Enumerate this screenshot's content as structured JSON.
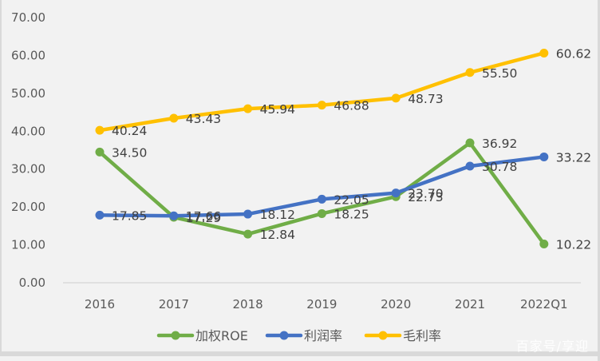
{
  "chart_data": {
    "type": "line",
    "title": "",
    "xlabel": "",
    "ylabel": "",
    "categories": [
      "2016",
      "2017",
      "2018",
      "2019",
      "2020",
      "2021",
      "2022Q1"
    ],
    "ylim": [
      0,
      70
    ],
    "yticks": [
      "0.00",
      "10.00",
      "20.00",
      "30.00",
      "40.00",
      "50.00",
      "60.00",
      "70.00"
    ],
    "grid": false,
    "legend_position": "bottom",
    "series": [
      {
        "name": "加权ROE",
        "color": "#70ad47",
        "values": [
          34.5,
          17.29,
          12.84,
          18.25,
          22.73,
          36.92,
          10.22
        ],
        "labels": [
          "34.50",
          "17.29",
          "12.84",
          "18.25",
          "22.73",
          "36.92",
          "10.22"
        ]
      },
      {
        "name": "利润率",
        "color": "#4472c4",
        "values": [
          17.85,
          17.66,
          18.12,
          22.05,
          23.7,
          30.78,
          33.22
        ],
        "labels": [
          "17.85",
          "17.66",
          "18.12",
          "22.05",
          "23.70",
          "30.78",
          "33.22"
        ]
      },
      {
        "name": "毛利率",
        "color": "#ffc000",
        "values": [
          40.24,
          43.43,
          45.94,
          46.88,
          48.73,
          55.5,
          60.62
        ],
        "labels": [
          "40.24",
          "43.43",
          "45.94",
          "46.88",
          "48.73",
          "55.50",
          "60.62"
        ]
      }
    ]
  },
  "watermark": "百家号/享迎"
}
